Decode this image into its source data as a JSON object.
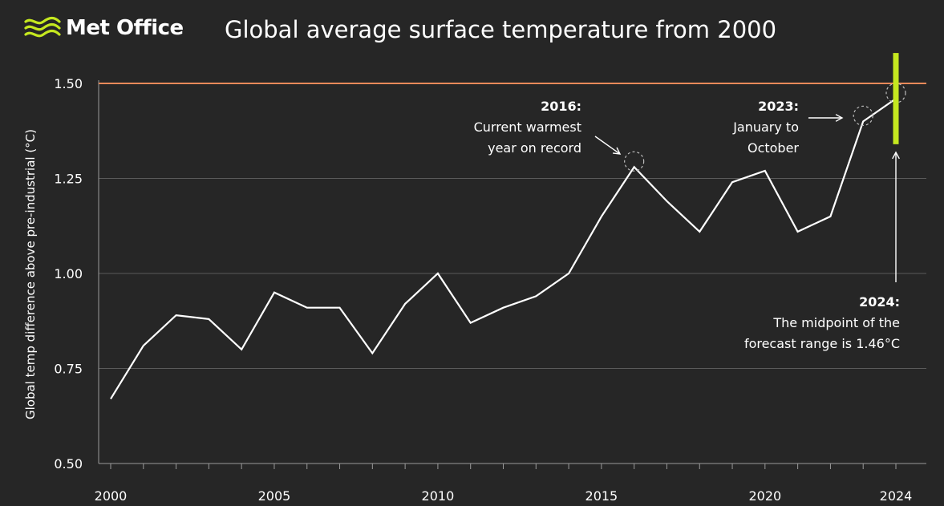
{
  "brand": {
    "name": "Met Office",
    "logo_icon": "met-office-waves-icon",
    "logo_color": "#c5e81f"
  },
  "chart_data": {
    "type": "line",
    "title": "Global average surface temperature from 2000",
    "xlabel": "",
    "ylabel": "Global temp difference above pre-industrial (°C)",
    "xlim": [
      2000,
      2024
    ],
    "ylim": [
      0.5,
      1.5
    ],
    "x_ticks": [
      "2000",
      "2005",
      "2010",
      "2015",
      "2020",
      "2024"
    ],
    "y_ticks": [
      "0.50",
      "0.75",
      "1.00",
      "1.25",
      "1.50"
    ],
    "grid": true,
    "series": [
      {
        "name": "Global average surface temperature",
        "color": "#ffffff",
        "x": [
          2000,
          2001,
          2002,
          2003,
          2004,
          2005,
          2006,
          2007,
          2008,
          2009,
          2010,
          2011,
          2012,
          2013,
          2014,
          2015,
          2016,
          2017,
          2018,
          2019,
          2020,
          2021,
          2022,
          2023,
          2024
        ],
        "values": [
          0.67,
          0.81,
          0.89,
          0.88,
          0.8,
          0.95,
          0.91,
          0.91,
          0.79,
          0.92,
          1.0,
          0.87,
          0.91,
          0.94,
          1.0,
          1.15,
          1.28,
          1.19,
          1.11,
          1.24,
          1.27,
          1.11,
          1.15,
          1.4,
          1.46
        ]
      }
    ],
    "threshold": {
      "value": 1.5,
      "color": "#e8895a"
    },
    "forecast_range": {
      "x": 2024,
      "low": 1.34,
      "high": 1.58,
      "midpoint": 1.46,
      "color": "#c5e81f"
    },
    "annotations": [
      {
        "id": "2016",
        "x": 2016,
        "y": 1.28,
        "title": "2016:",
        "lines": [
          "Current warmest",
          "year on record"
        ]
      },
      {
        "id": "2023",
        "x": 2023,
        "y": 1.4,
        "title": "2023:",
        "lines": [
          "January to",
          "October"
        ]
      },
      {
        "id": "2024",
        "x": 2024,
        "y": 1.46,
        "title": "2024:",
        "lines": [
          "The midpoint of the",
          "forecast range is 1.46°C"
        ]
      }
    ]
  }
}
